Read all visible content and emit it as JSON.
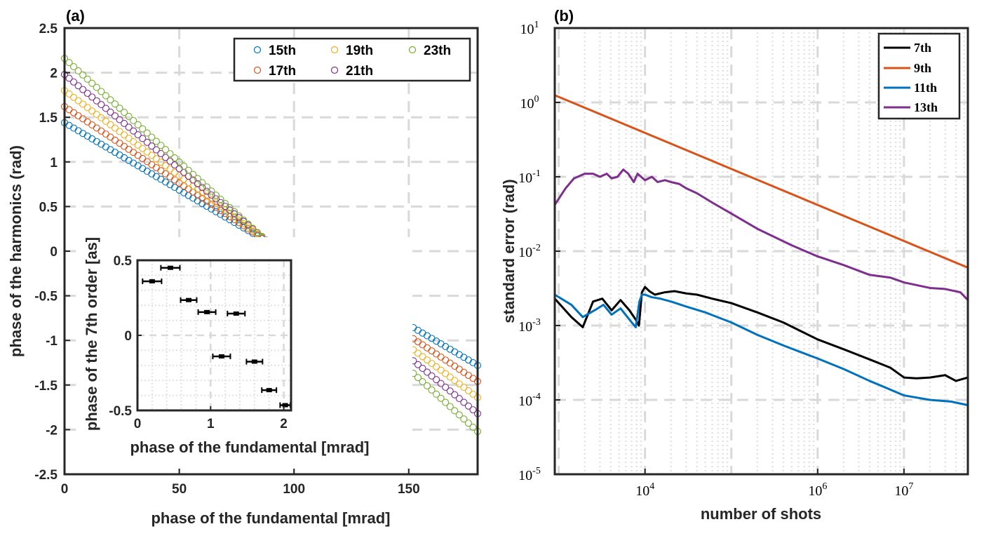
{
  "colors": {
    "15th": "#0072BD",
    "17th": "#D95319",
    "19th": "#EDB120",
    "21st": "#7E2F8E",
    "23rd": "#77AC30",
    "black": "#000000",
    "grid": "#d9d9d9"
  },
  "chart_data": [
    {
      "id": "a",
      "panel_label": "(a)",
      "type": "scatter",
      "xlabel": "phase of the fundamental [mrad]",
      "ylabel": "phase of the harmonics (rad)",
      "xlim": [
        0,
        180
      ],
      "ylim": [
        -2.5,
        2.5
      ],
      "xticks": [
        0,
        50,
        100,
        150
      ],
      "xtick_labels": [
        "0",
        "50",
        "100",
        "150"
      ],
      "yticks": [
        2.5,
        2,
        1.5,
        1,
        0.5,
        0,
        -0.5,
        -1,
        -1.5,
        -2,
        -2.5
      ],
      "ytick_labels": [
        "2.5",
        "2",
        "1.5",
        "1",
        "0.5",
        "0",
        "-0.5",
        "-1",
        "-1.5",
        "-2",
        "-2.5"
      ],
      "marker": "open-circle",
      "legend_position": "top-right",
      "x_start": 0,
      "x_end": 180,
      "x_step": 2,
      "series": [
        {
          "name": "15th",
          "color": "#0072BD",
          "start": 1.44,
          "end": -1.28
        },
        {
          "name": "17th",
          "color": "#D95319",
          "start": 1.62,
          "end": -1.46
        },
        {
          "name": "19th",
          "color": "#EDB120",
          "start": 1.8,
          "end": -1.64
        },
        {
          "name": "21th",
          "color": "#7E2F8E",
          "start": 1.98,
          "end": -1.82
        },
        {
          "name": "23th",
          "color": "#77AC30",
          "start": 2.16,
          "end": -2.02
        }
      ]
    },
    {
      "id": "inset",
      "type": "errorbar",
      "xlabel": "phase of the fundamental [mrad]",
      "ylabel": "phase of the 7th order [as]",
      "xlim": [
        0,
        2.1
      ],
      "ylim": [
        -0.5,
        0.5
      ],
      "xticks": [
        0,
        1,
        2
      ],
      "xtick_labels": [
        "0",
        "1",
        "2"
      ],
      "yticks": [
        0.5,
        0,
        -0.5
      ],
      "ytick_labels": [
        "0.5",
        "0",
        "-0.5"
      ],
      "points": [
        {
          "x": 0.2,
          "y": 0.36,
          "xerr": 0.13
        },
        {
          "x": 0.45,
          "y": 0.45,
          "xerr": 0.13
        },
        {
          "x": 0.7,
          "y": 0.235,
          "xerr": 0.11
        },
        {
          "x": 0.95,
          "y": 0.155,
          "xerr": 0.12
        },
        {
          "x": 1.15,
          "y": -0.14,
          "xerr": 0.12
        },
        {
          "x": 1.35,
          "y": 0.145,
          "xerr": 0.12
        },
        {
          "x": 1.6,
          "y": -0.175,
          "xerr": 0.11
        },
        {
          "x": 1.8,
          "y": -0.365,
          "xerr": 0.1
        },
        {
          "x": 2.02,
          "y": -0.465,
          "xerr": 0.07
        }
      ]
    },
    {
      "id": "b",
      "panel_label": "(b)",
      "type": "line",
      "xscale": "log",
      "yscale": "log",
      "xlabel": "number of shots",
      "ylabel": "standard error (rad)",
      "xlim": [
        900,
        55000000
      ],
      "ylim": [
        1e-05,
        10
      ],
      "xticks": [
        10000,
        1000000,
        10000000
      ],
      "xtick_labels": [
        {
          "base": "10",
          "exp": "4"
        },
        {
          "base": "10",
          "exp": "6"
        },
        {
          "base": "10",
          "exp": "7"
        }
      ],
      "yticks": [
        10,
        1,
        0.1,
        0.01,
        0.001,
        0.0001,
        1e-05
      ],
      "ytick_labels": [
        {
          "base": "10",
          "exp": "1"
        },
        {
          "base": "10",
          "exp": "0"
        },
        {
          "base": "10",
          "exp": "-1"
        },
        {
          "base": "10",
          "exp": "-2"
        },
        {
          "base": "10",
          "exp": "-3"
        },
        {
          "base": "10",
          "exp": "-4"
        },
        {
          "base": "10",
          "exp": "-5"
        }
      ],
      "legend_position": "top-right",
      "series": [
        {
          "name": "7th",
          "color": "#000000",
          "x": [
            900,
            1400,
            1900,
            2500,
            3200,
            4100,
            5200,
            6600,
            7800,
            8500,
            9200,
            10000,
            11200,
            13000,
            17000,
            22000,
            30000,
            40000,
            60000,
            100000,
            200000,
            400000,
            1000000,
            2000000,
            4000000,
            7000000,
            10000000,
            14000000,
            20000000,
            30000000,
            40000000,
            55000000
          ],
          "y": [
            0.0023,
            0.0013,
            0.00095,
            0.0021,
            0.0023,
            0.0016,
            0.0022,
            0.0016,
            0.0012,
            0.001,
            0.0028,
            0.0033,
            0.0029,
            0.0026,
            0.0028,
            0.0029,
            0.0027,
            0.0026,
            0.0023,
            0.002,
            0.0015,
            0.0011,
            0.00065,
            0.00048,
            0.00035,
            0.00027,
            0.0002,
            0.000195,
            0.0002,
            0.000215,
            0.00018,
            0.0002
          ]
        },
        {
          "name": "9th",
          "color": "#D95319",
          "x": [
            900,
            55000000
          ],
          "y": [
            1.25,
            0.006
          ]
        },
        {
          "name": "11th",
          "color": "#0072BD",
          "x": [
            900,
            1400,
            1900,
            2600,
            3300,
            4100,
            5200,
            6600,
            7800,
            8600,
            9200,
            10000,
            12000,
            15000,
            20000,
            30000,
            50000,
            100000,
            200000,
            400000,
            1000000,
            2000000,
            4000000,
            10000000,
            20000000,
            35000000,
            55000000
          ],
          "y": [
            0.0026,
            0.0019,
            0.0013,
            0.0016,
            0.0019,
            0.0014,
            0.0017,
            0.0012,
            0.00095,
            0.0021,
            0.0026,
            0.0026,
            0.0024,
            0.0023,
            0.0021,
            0.0018,
            0.0015,
            0.0011,
            0.00075,
            0.00054,
            0.00036,
            0.00026,
            0.00018,
            0.000115,
            0.0001,
            9.5e-05,
            8.5e-05
          ]
        },
        {
          "name": "13th",
          "color": "#7E2F8E",
          "x": [
            900,
            1200,
            1500,
            2000,
            2500,
            3000,
            3600,
            4100,
            4800,
            5600,
            6400,
            7400,
            8200,
            9000,
            10000,
            12000,
            14000,
            17000,
            20000,
            25000,
            30000,
            40000,
            60000,
            100000,
            200000,
            500000,
            1000000,
            2000000,
            4000000,
            7000000,
            10000000,
            20000000,
            30000000,
            45000000,
            55000000
          ],
          "y": [
            0.042,
            0.07,
            0.095,
            0.11,
            0.11,
            0.1,
            0.11,
            0.095,
            0.1,
            0.125,
            0.11,
            0.085,
            0.11,
            0.1,
            0.09,
            0.1,
            0.085,
            0.09,
            0.085,
            0.08,
            0.07,
            0.06,
            0.045,
            0.032,
            0.02,
            0.012,
            0.0085,
            0.0065,
            0.0048,
            0.0044,
            0.0038,
            0.0032,
            0.0031,
            0.0028,
            0.0022
          ]
        }
      ]
    }
  ]
}
